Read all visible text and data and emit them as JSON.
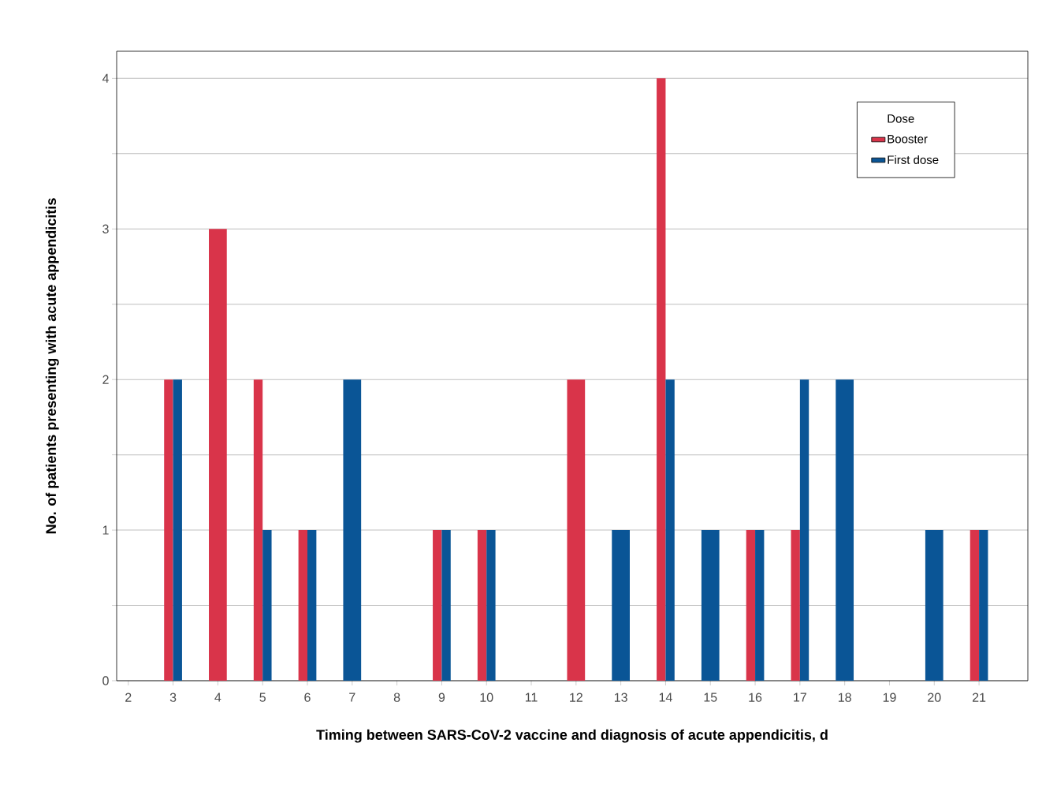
{
  "chart_data": {
    "type": "bar",
    "xlabel": "Timing between SARS-CoV-2 vaccine and diagnosis of acute appendicitis, d",
    "ylabel": "No. of patients presenting with acute appendicitis",
    "categories": [
      "2",
      "3",
      "4",
      "5",
      "6",
      "7",
      "8",
      "9",
      "10",
      "11",
      "12",
      "13",
      "14",
      "15",
      "16",
      "17",
      "18",
      "19",
      "20",
      "21"
    ],
    "series": [
      {
        "name": "Booster",
        "color": "#d9344a",
        "values": [
          null,
          2,
          3,
          2,
          1,
          null,
          null,
          1,
          1,
          null,
          2,
          null,
          4,
          null,
          1,
          1,
          null,
          null,
          null,
          1
        ]
      },
      {
        "name": "First dose",
        "color": "#0a5596",
        "values": [
          null,
          2,
          null,
          1,
          1,
          2,
          null,
          1,
          1,
          null,
          null,
          1,
          2,
          1,
          1,
          2,
          2,
          null,
          1,
          1
        ]
      }
    ],
    "ylim": [
      0,
      4.18
    ],
    "yticks": [
      0,
      {
        "value": 0.5,
        "label": null
      },
      1,
      {
        "value": 1.5,
        "label": null
      },
      2,
      {
        "value": 2.5,
        "label": null
      },
      3,
      {
        "value": 3.5,
        "label": null
      },
      4
    ],
    "grid": "y",
    "legend": "top right",
    "legend_title": "Dose"
  }
}
